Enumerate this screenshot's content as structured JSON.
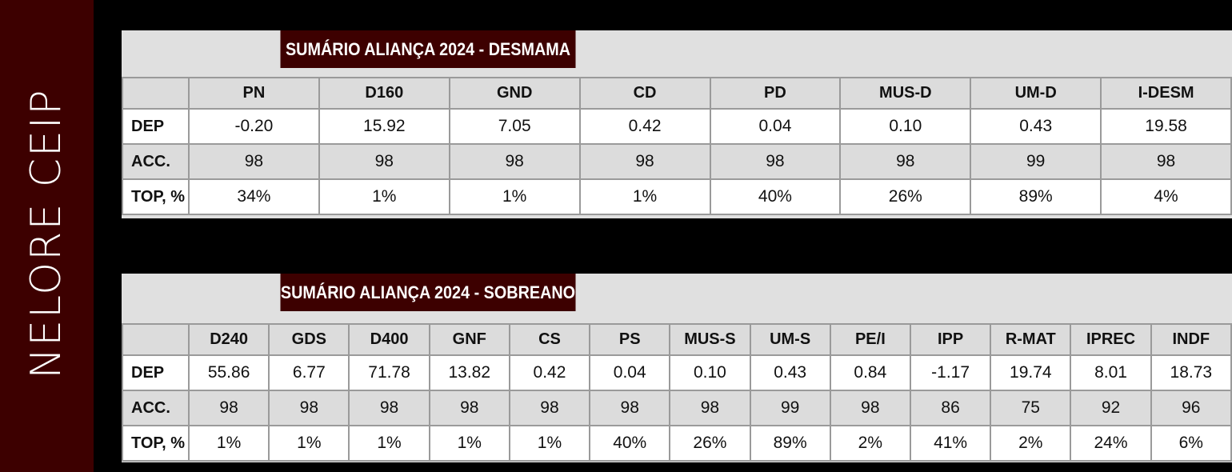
{
  "sidebar": {
    "title": "NELORE CEIP"
  },
  "tables": [
    {
      "title": "SUMÁRIO ALIANÇA 2024 - DESMAMA",
      "columns": [
        "PN",
        "D160",
        "GND",
        "CD",
        "PD",
        "MUS-D",
        "UM-D",
        "I-DESM"
      ],
      "rows": [
        {
          "label": "DEP",
          "values": [
            "-0.20",
            "15.92",
            "7.05",
            "0.42",
            "0.04",
            "0.10",
            "0.43",
            "19.58"
          ]
        },
        {
          "label": "ACC.",
          "values": [
            "98",
            "98",
            "98",
            "98",
            "98",
            "98",
            "99",
            "98"
          ]
        },
        {
          "label": "TOP, %",
          "values": [
            "34%",
            "1%",
            "1%",
            "1%",
            "40%",
            "26%",
            "89%",
            "4%"
          ]
        }
      ]
    },
    {
      "title": "SUMÁRIO ALIANÇA 2024 - SOBREANO",
      "columns": [
        "D240",
        "GDS",
        "D400",
        "GNF",
        "CS",
        "PS",
        "MUS-S",
        "UM-S",
        "PE/I",
        "IPP",
        "R-MAT",
        "IPREC",
        "INDF"
      ],
      "rows": [
        {
          "label": "DEP",
          "values": [
            "55.86",
            "6.77",
            "71.78",
            "13.82",
            "0.42",
            "0.04",
            "0.10",
            "0.43",
            "0.84",
            "-1.17",
            "19.74",
            "8.01",
            "18.73"
          ]
        },
        {
          "label": "ACC.",
          "values": [
            "98",
            "98",
            "98",
            "98",
            "98",
            "98",
            "98",
            "99",
            "98",
            "86",
            "75",
            "92",
            "96"
          ]
        },
        {
          "label": "TOP, %",
          "values": [
            "1%",
            "1%",
            "1%",
            "1%",
            "1%",
            "40%",
            "26%",
            "89%",
            "2%",
            "41%",
            "2%",
            "24%",
            "6%"
          ]
        }
      ]
    }
  ]
}
